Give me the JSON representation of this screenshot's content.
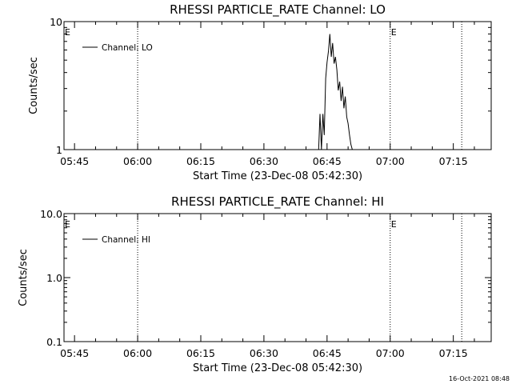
{
  "footer": {
    "stamp": "16-Oct-2021 08:48"
  },
  "chart_data": [
    {
      "type": "line",
      "title": "RHESSI PARTICLE_RATE Channel: LO",
      "xlabel": "Start Time (23-Dec-08 05:42:30)",
      "ylabel": "Counts/sec",
      "yscale": "log",
      "x_tick_labels": [
        "05:45",
        "06:00",
        "06:15",
        "06:30",
        "06:45",
        "07:00",
        "07:15"
      ],
      "y_tick_labels": [
        "1",
        "10"
      ],
      "xlim": [
        "05:42:30",
        "07:24:00"
      ],
      "ylim": [
        1,
        10
      ],
      "legend": {
        "entries": [
          "Channel: LO"
        ],
        "placement": "top-left"
      },
      "vertical_markers": [
        "06:00",
        "07:00",
        "07:17"
      ],
      "event_labels": [
        {
          "text": "E",
          "at": "05:42:30"
        },
        {
          "text": "E",
          "at": "07:00"
        }
      ],
      "series": [
        {
          "name": "Channel: LO",
          "x": [
            "06:43:00",
            "06:43:20",
            "06:43:40",
            "06:44:00",
            "06:44:20",
            "06:44:40",
            "06:45:00",
            "06:45:20",
            "06:45:40",
            "06:46:00",
            "06:46:20",
            "06:46:40",
            "06:47:00",
            "06:47:20",
            "06:47:40",
            "06:48:00",
            "06:48:20",
            "06:48:40",
            "06:49:00",
            "06:49:20",
            "06:49:40",
            "06:50:00",
            "06:50:20",
            "06:50:40",
            "06:51:00"
          ],
          "values": [
            1,
            1.9,
            1,
            1.9,
            1.3,
            3.6,
            4.8,
            5.9,
            8.0,
            5.3,
            6.8,
            4.7,
            5.3,
            4.2,
            2.9,
            3.4,
            2.4,
            3.1,
            2.1,
            2.6,
            1.8,
            1.6,
            1.3,
            1.1,
            1
          ]
        }
      ]
    },
    {
      "type": "line",
      "title": "RHESSI PARTICLE_RATE Channel: HI",
      "xlabel": "Start Time (23-Dec-08 05:42:30)",
      "ylabel": "Counts/sec",
      "yscale": "log",
      "x_tick_labels": [
        "05:45",
        "06:00",
        "06:15",
        "06:30",
        "06:45",
        "07:00",
        "07:15"
      ],
      "y_tick_labels": [
        "0.1",
        "1.0",
        "10.0"
      ],
      "xlim": [
        "05:42:30",
        "07:24:00"
      ],
      "ylim": [
        0.1,
        10
      ],
      "legend": {
        "entries": [
          "Channel: HI"
        ],
        "placement": "top-left"
      },
      "vertical_markers": [
        "06:00",
        "07:00",
        "07:17"
      ],
      "event_labels": [
        {
          "text": "E",
          "at": "05:42:30"
        },
        {
          "text": "E",
          "at": "07:00"
        }
      ],
      "series": [
        {
          "name": "Channel: HI",
          "x": [],
          "values": []
        }
      ]
    }
  ]
}
